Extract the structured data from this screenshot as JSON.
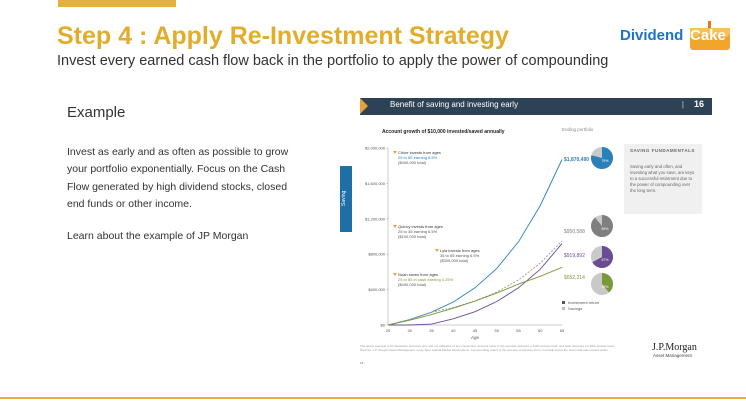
{
  "slide": {
    "title": "Step 4 : Apply Re-Investment Strategy",
    "subtitle": "Invest every earned cash flow back in the portfolio to apply the power of compounding",
    "logo": {
      "part1": "Dividend",
      "part2": "Cake",
      "accent": "#f2a52b",
      "brand": "#1b74c5"
    },
    "example": {
      "heading": "Example",
      "body": "Invest as early and as often as possible to grow your portfolio exponentially. Focus on the Cash Flow generated by high dividend stocks, closed end funds or other income.",
      "link": "Learn about the example of JP Morgan"
    },
    "colors": {
      "gold": "#e3ad2c",
      "navy": "#2e4255"
    }
  },
  "embedded": {
    "header": "Benefit of saving and investing early",
    "page_number": "16",
    "separator": "|",
    "side_tab": "Saving",
    "fundamentals": {
      "title": "SAVING FUNDAMENTALS",
      "body": "Saving early and often, and investing what you save, are keys to a successful retirement due to the power of compounding over the long term."
    },
    "ending_label": "Ending portfolio",
    "legend": [
      "Investment return",
      "Savings"
    ],
    "annotations": {
      "chloe": [
        "Chloe invests from ages",
        "25 to 65 earning 6.5%",
        "($400,000 total)"
      ],
      "quincy": [
        "Quincy invests from ages",
        "25 to 35 earning 6.5%",
        "($100,000 total)"
      ],
      "lyla": [
        "Lyla invests from ages",
        "35 to 65 earning 6.5%",
        "($300,000 total)"
      ],
      "noah": [
        "Noah saves from ages",
        "25 to 65 in cash earning 3.25%",
        "($400,000 total)"
      ]
    },
    "footnote": "The above example is for illustrative purposes only and not indicative of any investment. Account value in the example assumes a 6.5% annual return and cash assumes a 3.25% annual return. Sources: J.P. Morgan Asset Management, Long-Term Capital Market Assumptions. Compounding refers to the process of earning return on principal plus the return that was earned earlier.",
    "brand": "J.P.Morgan",
    "brand_sub": "Asset Management",
    "page_footer": "16"
  },
  "chart_data": {
    "type": "line",
    "title": "Account growth of $10,000 invested/saved annually",
    "xlabel": "Age",
    "ylabel": "",
    "x": [
      25,
      30,
      35,
      40,
      45,
      50,
      55,
      60,
      65
    ],
    "x_ticks": [
      "25",
      "30",
      "35",
      "40",
      "45",
      "50",
      "55",
      "60",
      "65"
    ],
    "y_ticks": [
      "$0",
      "$400,000",
      "$800,000",
      "$1,200,000",
      "$1,600,000",
      "$2,000,000"
    ],
    "ylim": [
      0,
      2000000
    ],
    "grid": false,
    "series": [
      {
        "name": "Chloe",
        "color": "#2a80b9",
        "values": [
          0,
          61000,
          145000,
          260000,
          420000,
          640000,
          940000,
          1350000,
          1870490
        ]
      },
      {
        "name": "Quincy",
        "color": "#999999",
        "dashed": true,
        "values": [
          0,
          61000,
          145000,
          198000,
          272000,
          372000,
          510000,
          699000,
          950588
        ]
      },
      {
        "name": "Lyla",
        "color": "#6a4c93",
        "values": [
          0,
          0,
          10000,
          70000,
          150000,
          265000,
          420000,
          630000,
          919892
        ]
      },
      {
        "name": "Noah",
        "color": "#7a9a3a",
        "values": [
          0,
          54000,
          118000,
          190000,
          270000,
          360000,
          462000,
          550000,
          652214
        ]
      }
    ],
    "ending_values": [
      "$1,870,490",
      "$950,588",
      "$919,892",
      "$652,214"
    ],
    "ending_colors": [
      "#2a80b9",
      "#7f7f7f",
      "#6a4c93",
      "#7a9a3a"
    ],
    "pies": [
      {
        "invest_pct": 79,
        "label": "79%"
      },
      {
        "invest_pct": 89,
        "label": "89%"
      },
      {
        "invest_pct": 67,
        "label": "67%"
      },
      {
        "invest_pct": 39,
        "label": "39%"
      }
    ]
  }
}
